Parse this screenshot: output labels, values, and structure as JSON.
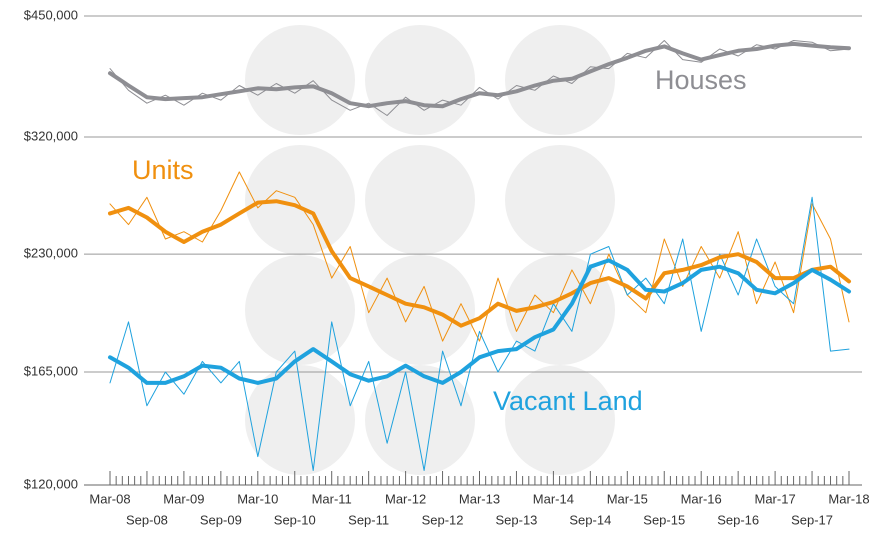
{
  "chart_data": {
    "type": "line",
    "categories": [
      "Mar-08",
      null,
      "Sep-08",
      null,
      "Mar-09",
      null,
      "Sep-09",
      null,
      "Mar-10",
      null,
      "Sep-10",
      null,
      "Mar-11",
      null,
      "Sep-11",
      null,
      "Mar-12",
      null,
      "Sep-12",
      null,
      "Mar-13",
      null,
      "Sep-13",
      null,
      "Mar-14",
      null,
      "Sep-14",
      null,
      "Mar-15",
      null,
      "Sep-15",
      null,
      "Mar-16",
      null,
      "Sep-16",
      null,
      "Mar-17",
      null,
      "Sep-17",
      null,
      "Mar-18"
    ],
    "series": [
      {
        "name": "Houses",
        "color": "#8e8e93",
        "values": [
          383000,
          370000,
          358000,
          356000,
          357000,
          358000,
          361000,
          364000,
          367000,
          366000,
          368000,
          369000,
          362000,
          352000,
          349000,
          352000,
          354000,
          350000,
          349000,
          356000,
          362000,
          360000,
          364000,
          370000,
          375000,
          377000,
          385000,
          393000,
          400000,
          408000,
          413000,
          405000,
          398000,
          403000,
          408000,
          410000,
          414000,
          416000,
          414000,
          412000,
          411000
        ],
        "raw": [
          388000,
          365000,
          352000,
          360000,
          350000,
          362000,
          355000,
          370000,
          360000,
          372000,
          362000,
          375000,
          355000,
          345000,
          352000,
          340000,
          358000,
          345000,
          355000,
          350000,
          368000,
          356000,
          370000,
          365000,
          380000,
          372000,
          390000,
          388000,
          405000,
          400000,
          420000,
          398000,
          395000,
          410000,
          402000,
          415000,
          410000,
          420000,
          418000,
          408000,
          410000
        ]
      },
      {
        "name": "Units",
        "color": "#f0900f",
        "values": [
          258000,
          262000,
          255000,
          245000,
          238000,
          245000,
          250000,
          258000,
          266000,
          267000,
          264000,
          258000,
          232000,
          215000,
          210000,
          205000,
          200000,
          198000,
          194000,
          188000,
          192000,
          200000,
          196000,
          198000,
          201000,
          206000,
          212000,
          215000,
          210000,
          203000,
          218000,
          220000,
          223000,
          228000,
          230000,
          225000,
          215000,
          215000,
          220000,
          222000,
          213000
        ],
        "raw": [
          265000,
          250000,
          270000,
          240000,
          245000,
          238000,
          260000,
          290000,
          262000,
          275000,
          270000,
          250000,
          215000,
          235000,
          195000,
          215000,
          190000,
          210000,
          180000,
          200000,
          180000,
          215000,
          185000,
          205000,
          195000,
          220000,
          200000,
          230000,
          205000,
          195000,
          240000,
          210000,
          235000,
          215000,
          245000,
          200000,
          225000,
          195000,
          265000,
          240000,
          190000
        ]
      },
      {
        "name": "Vacant Land",
        "color": "#1fa2de",
        "values": [
          172000,
          167000,
          160000,
          160000,
          163000,
          168000,
          167000,
          162000,
          160000,
          162000,
          170000,
          176000,
          170000,
          164000,
          161000,
          163000,
          168000,
          163000,
          160000,
          165000,
          172000,
          175000,
          176000,
          182000,
          186000,
          200000,
          222000,
          226000,
          220000,
          208000,
          207000,
          212000,
          220000,
          222000,
          218000,
          208000,
          206000,
          212000,
          220000,
          214000,
          207000
        ],
        "raw": [
          160000,
          190000,
          150000,
          165000,
          155000,
          170000,
          160000,
          170000,
          130000,
          165000,
          175000,
          125000,
          190000,
          150000,
          170000,
          135000,
          165000,
          125000,
          175000,
          150000,
          185000,
          165000,
          180000,
          175000,
          200000,
          185000,
          230000,
          235000,
          205000,
          215000,
          200000,
          240000,
          185000,
          230000,
          205000,
          240000,
          210000,
          200000,
          270000,
          175000,
          176000
        ]
      }
    ],
    "ylim": [
      120000,
      450000
    ],
    "log_y": true,
    "yticks": [
      {
        "value": 120000,
        "label": "$120,000"
      },
      {
        "value": 165000,
        "label": "$165,000"
      },
      {
        "value": 230000,
        "label": "$230,000"
      },
      {
        "value": 320000,
        "label": "$320,000"
      },
      {
        "value": 450000,
        "label": "$450,000"
      }
    ],
    "grid": true
  }
}
